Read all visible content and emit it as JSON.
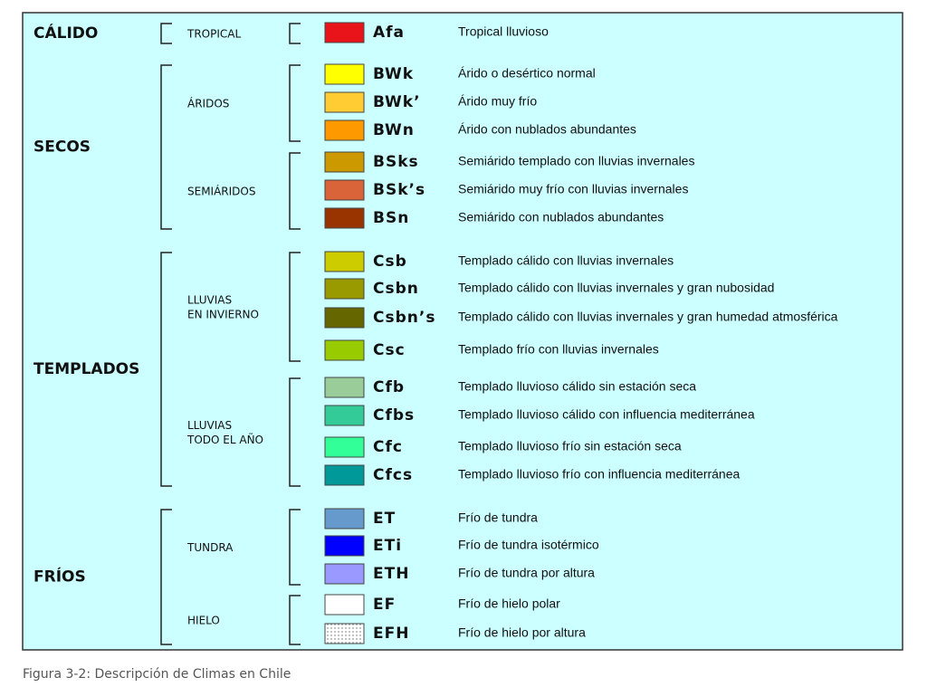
{
  "groups": [
    {
      "label": "CÁLIDO",
      "subgroups": [
        {
          "label": [
            "TROPICAL"
          ],
          "entries": [
            {
              "code": "Afa",
              "description": "Tropical lluvioso",
              "color": "#e8141a"
            }
          ]
        }
      ]
    },
    {
      "label": "SECOS",
      "subgroups": [
        {
          "label": [
            "ÁRIDOS"
          ],
          "entries": [
            {
              "code": "BWk",
              "description": "Árido o desértico normal",
              "color": "#ffff00"
            },
            {
              "code": "BWk’",
              "description": "Árido muy frío",
              "color": "#ffcc33"
            },
            {
              "code": "BWn",
              "description": "Árido con nublados abundantes",
              "color": "#ff9900"
            }
          ]
        },
        {
          "label": [
            "SEMIÁRIDOS"
          ],
          "entries": [
            {
              "code": "BSks",
              "description": "Semiárido templado con lluvias invernales",
              "color": "#cc9900"
            },
            {
              "code": "BSk’s",
              "description": "Semiárido muy frío con lluvias invernales",
              "color": "#d9643a"
            },
            {
              "code": "BSn",
              "description": "Semiárido con nublados abundantes",
              "color": "#993300"
            }
          ]
        }
      ]
    },
    {
      "label": "TEMPLADOS",
      "subgroups": [
        {
          "label": [
            "LLUVIAS",
            "EN INVIERNO"
          ],
          "entries": [
            {
              "code": "Csb",
              "description": "Templado cálido con lluvias invernales",
              "color": "#cccc00"
            },
            {
              "code": "Csbn",
              "description": "Templado cálido con lluvias invernales y gran nubosidad",
              "color": "#999900"
            },
            {
              "code": "Csbn’s",
              "description": "Templado cálido con lluvias invernales y gran humedad atmosférica",
              "color": "#666600"
            },
            {
              "code": "Csc",
              "description": "Templado frío con lluvias invernales",
              "color": "#99cc00"
            }
          ]
        },
        {
          "label": [
            "LLUVIAS",
            "TODO EL AÑO"
          ],
          "entries": [
            {
              "code": "Cfb",
              "description": "Templado lluvioso cálido sin estación seca",
              "color": "#99cc99"
            },
            {
              "code": "Cfbs",
              "description": "Templado lluvioso cálido con influencia mediterránea",
              "color": "#33cc99"
            },
            {
              "code": "Cfc",
              "description": "Templado lluvioso frío sin estación seca",
              "color": "#33ff99"
            },
            {
              "code": "Cfcs",
              "description": "Templado lluvioso frío con influencia mediterránea",
              "color": "#009999"
            }
          ]
        }
      ]
    },
    {
      "label": "FRÍOS",
      "subgroups": [
        {
          "label": [
            "TUNDRA"
          ],
          "entries": [
            {
              "code": "ET",
              "description": "Frío de tundra",
              "color": "#6699cc"
            },
            {
              "code": "ETi",
              "description": "Frío de tundra isotérmico",
              "color": "#0000ff"
            },
            {
              "code": "ETH",
              "description": "Frío de tundra por altura",
              "color": "#9999ff"
            }
          ]
        },
        {
          "label": [
            "HIELO"
          ],
          "entries": [
            {
              "code": "EF",
              "description": "Frío de hielo polar",
              "color": "#ffffff"
            },
            {
              "code": "EFH",
              "description": "Frío de hielo por altura",
              "color": "#ffffff",
              "pattern": "dots"
            }
          ]
        }
      ]
    }
  ],
  "caption": "Figura 3-2: Descripción de Climas en Chile"
}
